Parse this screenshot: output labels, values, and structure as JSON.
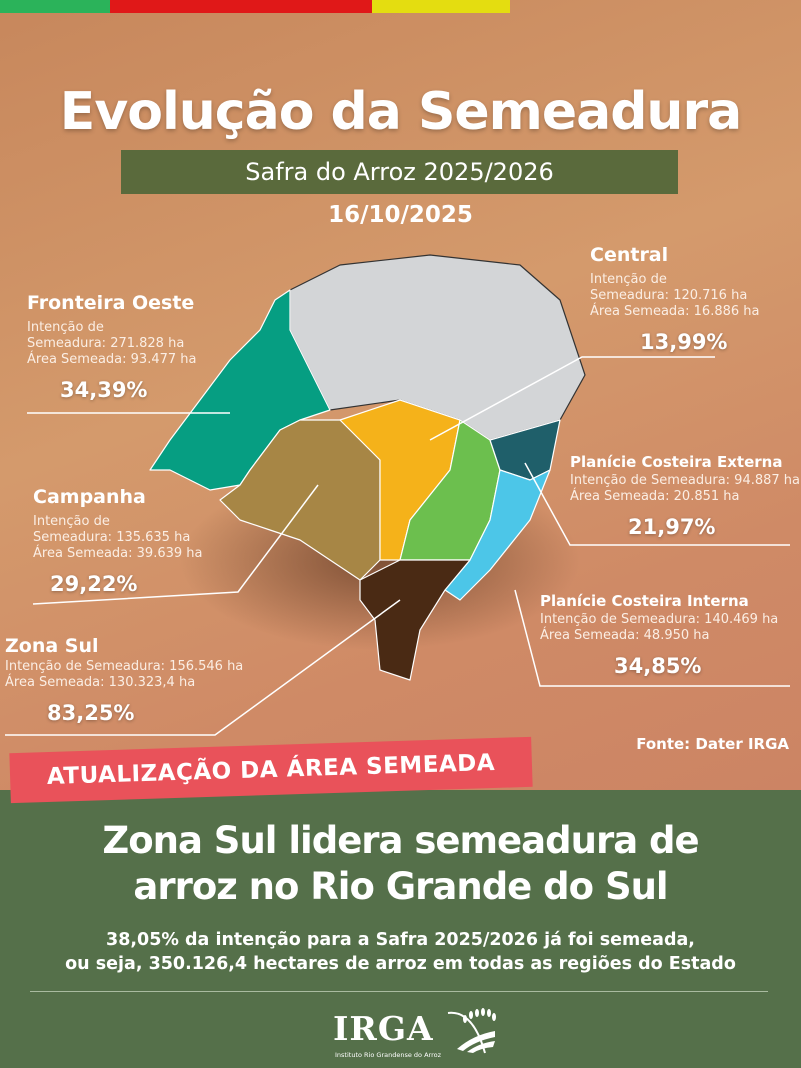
{
  "colors": {
    "bar_green": "#2bb35a",
    "bar_red": "#e01818",
    "bar_yellow": "#e4dd10",
    "footer_green": "#55704a",
    "banner_red": "#e9525a"
  },
  "header": {
    "title": "Evolução da Semeadura",
    "subtitle": "Safra do Arroz 2025/2026",
    "date": "16/10/2025"
  },
  "regions": [
    {
      "name": "Fronteira Oeste",
      "line1": "Intenção de",
      "line2": "Semeadura: 271.828 ha",
      "line3": "Área Semeada: 93.477 ha",
      "percent": "34,39%",
      "color": "#069e82"
    },
    {
      "name": "Central",
      "line1": "Intenção de",
      "line2": "Semeadura: 120.716 ha",
      "line3": "Área Semeada: 16.886 ha",
      "percent": "13,99%",
      "color": "#f5b21a"
    },
    {
      "name": "Campanha",
      "line1": "Intenção de",
      "line2": "Semeadura: 135.635 ha",
      "line3": "Área Semeada: 39.639 ha",
      "percent": "29,22%",
      "color": "#a78645"
    },
    {
      "name": "Planície Costeira Externa",
      "line1": "Intenção de Semeadura: 94.887 ha",
      "line2": "Área Semeada: 20.851 ha",
      "percent": "21,97%",
      "color": "#1f5f6a"
    },
    {
      "name": "Zona Sul",
      "line1": "Intenção de Semeadura: 156.546 ha",
      "line2": "Área Semeada: 130.323,4 ha",
      "percent": "83,25%",
      "color": "#4a2a14"
    },
    {
      "name": "Planície Costeira Interna",
      "line1": "Intenção de Semeadura: 140.469 ha",
      "line2": "Área Semeada: 48.950 ha",
      "percent": "34,85%",
      "color": "#4cc6e8"
    }
  ],
  "source": "Fonte: Dater IRGA",
  "banner": "ATUALIZAÇÃO DA ÁREA SEMEADA",
  "headline": {
    "line1": "Zona Sul lidera semeadura de",
    "line2": "arroz no Rio Grande do Sul"
  },
  "summary": {
    "line1": "38,05% da intenção para a Safra 2025/2026 já foi semeada,",
    "line2": "ou seja, 350.126,4 hectares de arroz em todas as regiões do Estado"
  },
  "logo": {
    "text": "IRGA",
    "tagline": "Instituto Rio Grandense do Arroz"
  }
}
